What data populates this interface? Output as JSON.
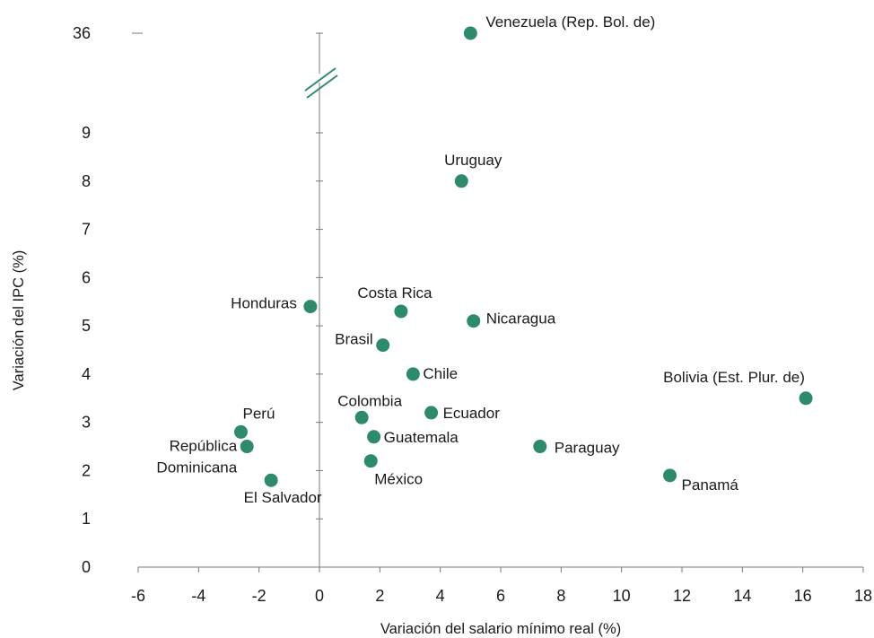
{
  "chart_data": {
    "type": "scatter",
    "xlabel": "Variación del salario mínimo real (%)",
    "ylabel": "Variación del IPC (%)",
    "xlim": [
      -6,
      18
    ],
    "ylim": [
      0,
      9
    ],
    "y_axis_break": {
      "after": 9,
      "upper_tick": 36
    },
    "x_ticks": [
      "-6",
      "-4",
      "-2",
      "0",
      "2",
      "4",
      "6",
      "8",
      "10",
      "12",
      "14",
      "16",
      "18"
    ],
    "y_ticks": [
      "0",
      "1",
      "2",
      "3",
      "4",
      "5",
      "6",
      "7",
      "8",
      "9",
      "36"
    ],
    "marker_color": "#2e8b6a",
    "break_color": "#2e8b6a",
    "grid": false,
    "points": [
      {
        "label": "Venezuela (Rep. Bol. de)",
        "x": 5.0,
        "y": 36
      },
      {
        "label": "Uruguay",
        "x": 4.7,
        "y": 8.0
      },
      {
        "label": "Costa Rica",
        "x": 2.7,
        "y": 5.3
      },
      {
        "label": "Honduras",
        "x": -0.3,
        "y": 5.4
      },
      {
        "label": "Nicaragua",
        "x": 5.1,
        "y": 5.1
      },
      {
        "label": "Brasil",
        "x": 2.1,
        "y": 4.6
      },
      {
        "label": "Chile",
        "x": 3.1,
        "y": 4.0
      },
      {
        "label": "Bolivia (Est. Plur. de)",
        "x": 16.1,
        "y": 3.5
      },
      {
        "label": "Colombia",
        "x": 1.4,
        "y": 3.1
      },
      {
        "label": "Ecuador",
        "x": 3.7,
        "y": 3.2
      },
      {
        "label": "Perú",
        "x": -2.6,
        "y": 2.8
      },
      {
        "label": "República Dominicana",
        "x": -2.4,
        "y": 2.5
      },
      {
        "label": "Guatemala",
        "x": 1.8,
        "y": 2.7
      },
      {
        "label": "Paraguay",
        "x": 7.3,
        "y": 2.5
      },
      {
        "label": "México",
        "x": 1.7,
        "y": 2.2
      },
      {
        "label": "El Salvador",
        "x": -1.6,
        "y": 1.8
      },
      {
        "label": "Panamá",
        "x": 11.6,
        "y": 1.9
      }
    ]
  }
}
